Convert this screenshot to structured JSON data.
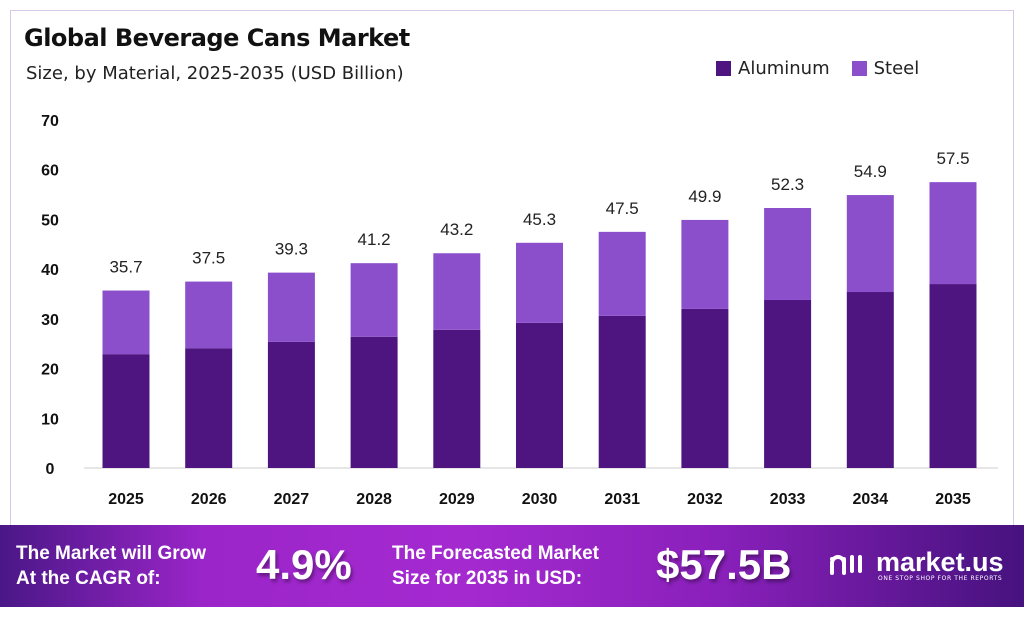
{
  "chart_data": {
    "type": "bar",
    "stacked": true,
    "title": "Global Beverage Cans Market",
    "subtitle": "Size, by Material, 2025-2035 (USD Billion)",
    "categories": [
      "2025",
      "2026",
      "2027",
      "2028",
      "2029",
      "2030",
      "2031",
      "2032",
      "2033",
      "2034",
      "2035"
    ],
    "series": [
      {
        "name": "Aluminum",
        "color": "#4e1580",
        "values": [
          22.9,
          24.1,
          25.4,
          26.4,
          27.8,
          29.2,
          30.6,
          32.0,
          33.8,
          35.4,
          37.0
        ]
      },
      {
        "name": "Steel",
        "color": "#8b4fcc",
        "values": [
          12.8,
          13.4,
          13.9,
          14.8,
          15.4,
          16.1,
          16.9,
          17.9,
          18.5,
          19.5,
          20.5
        ]
      }
    ],
    "totals": [
      "35.7",
      "37.5",
      "39.3",
      "41.2",
      "43.2",
      "45.3",
      "47.5",
      "49.9",
      "52.3",
      "54.9",
      "57.5"
    ],
    "yticks": [
      "0",
      "10",
      "20",
      "30",
      "40",
      "50",
      "60",
      "70"
    ],
    "ylim": [
      0,
      70
    ],
    "grid": false,
    "legend_position": "top-right",
    "xlabel": "",
    "ylabel": ""
  },
  "banner": {
    "cagr_label_line1": "The Market will Grow",
    "cagr_label_line2": "At the CAGR of:",
    "cagr_value": "4.9%",
    "forecast_label_line1": "The Forecasted Market",
    "forecast_label_line2": "Size for 2035 in USD:",
    "forecast_value": "$57.5B",
    "logo_name": "market.us",
    "logo_tagline": "ONE STOP SHOP FOR THE REPORTS"
  }
}
